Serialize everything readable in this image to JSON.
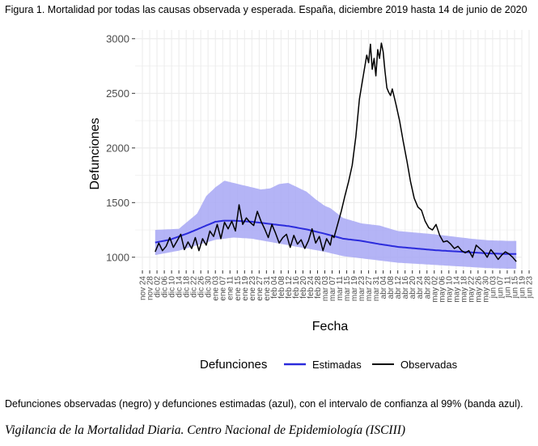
{
  "figure_title": "Figura 1. Mortalidad por todas las causas observada y esperada. España, diciembre 2019 hasta 14 de junio de 2020",
  "caption": "Defunciones observadas (negro) y defunciones estimadas (azul), con el intervalo de confianza al 99% (banda azul).",
  "source": "Vigilancia de la Mortalidad Diaria. Centro Nacional de Epidemiología (ISCIII)",
  "colors": {
    "estimated": "#2b2bdc",
    "band": "#a7a7f5",
    "observed": "#000000",
    "grid": "#ebebeb"
  },
  "chart_data": {
    "type": "line",
    "xlabel": "Fecha",
    "ylabel": "Defunciones",
    "ylim": [
      880,
      3080
    ],
    "yticks": [
      1000,
      1500,
      2000,
      2500,
      3000
    ],
    "ytick_labels": [
      "1000",
      "1500",
      "2000",
      "2500",
      "3000"
    ],
    "xrange_days": [
      -4,
      208
    ],
    "xtick_labels": [
      "nov 24",
      "nov 28",
      "dic 02",
      "dic 06",
      "dic 10",
      "dic 14",
      "dic 18",
      "dic 22",
      "dic 26",
      "dic 30",
      "ene 03",
      "ene 07",
      "ene 11",
      "ene 15",
      "ene 19",
      "ene 23",
      "ene 27",
      "ene 31",
      "feb 04",
      "feb 08",
      "feb 12",
      "feb 16",
      "feb 20",
      "feb 24",
      "feb 28",
      "mar 03",
      "mar 07",
      "mar 11",
      "mar 15",
      "mar 19",
      "mar 23",
      "mar 27",
      "mar 31",
      "abr 04",
      "abr 08",
      "abr 12",
      "abr 16",
      "abr 20",
      "abr 24",
      "abr 28",
      "may 02",
      "may 06",
      "may 10",
      "may 14",
      "may 18",
      "may 22",
      "may 26",
      "may 30",
      "jun 03",
      "jun 07",
      "jun 11",
      "jun 15",
      "jun 19",
      "jun 23"
    ],
    "xtick_days": [
      0,
      4,
      8,
      12,
      16,
      20,
      24,
      28,
      32,
      36,
      40,
      44,
      48,
      52,
      56,
      60,
      64,
      68,
      72,
      76,
      80,
      84,
      88,
      92,
      96,
      100,
      104,
      108,
      112,
      116,
      120,
      124,
      128,
      132,
      136,
      140,
      144,
      148,
      152,
      156,
      160,
      164,
      168,
      172,
      176,
      180,
      184,
      188,
      192,
      196,
      200,
      204,
      208,
      212
    ],
    "legend": {
      "title": "Defunciones",
      "items": [
        "Estimadas",
        "Observadas"
      ],
      "position": "bottom"
    },
    "series": [
      {
        "name": "Estimadas",
        "x": [
          7,
          15,
          25,
          35,
          40,
          45,
          50,
          60,
          70,
          80,
          90,
          100,
          110,
          120,
          130,
          140,
          150,
          160,
          170,
          180,
          190,
          200,
          205
        ],
        "values": [
          1135,
          1160,
          1220,
          1290,
          1325,
          1335,
          1335,
          1325,
          1305,
          1285,
          1255,
          1215,
          1170,
          1150,
          1120,
          1095,
          1080,
          1065,
          1055,
          1045,
          1035,
          1030,
          1030
        ]
      },
      {
        "name": "Banda superior 99%",
        "x": [
          7,
          20,
          30,
          35,
          40,
          45,
          50,
          55,
          60,
          65,
          70,
          75,
          80,
          85,
          90,
          95,
          100,
          103,
          110,
          120,
          130,
          140,
          150,
          160,
          170,
          180,
          190,
          200,
          205
        ],
        "values": [
          1250,
          1260,
          1400,
          1560,
          1640,
          1700,
          1680,
          1660,
          1640,
          1620,
          1630,
          1670,
          1680,
          1640,
          1600,
          1530,
          1470,
          1450,
          1360,
          1310,
          1290,
          1240,
          1225,
          1210,
          1190,
          1170,
          1155,
          1150,
          1150
        ]
      },
      {
        "name": "Banda inferior 99%",
        "x": [
          7,
          20,
          30,
          40,
          50,
          60,
          70,
          80,
          90,
          100,
          110,
          120,
          130,
          140,
          150,
          160,
          170,
          180,
          190,
          200,
          205
        ],
        "values": [
          1020,
          1060,
          1110,
          1160,
          1180,
          1170,
          1140,
          1110,
          1080,
          1050,
          1010,
          990,
          970,
          950,
          940,
          930,
          920,
          910,
          900,
          895,
          895
        ]
      },
      {
        "name": "Observadas",
        "x": [
          7,
          9,
          11,
          13,
          15,
          17,
          19,
          21,
          23,
          25,
          27,
          29,
          31,
          33,
          35,
          37,
          39,
          41,
          43,
          45,
          47,
          49,
          51,
          53,
          55,
          57,
          59,
          61,
          63,
          65,
          67,
          69,
          71,
          73,
          75,
          77,
          79,
          81,
          83,
          85,
          87,
          89,
          91,
          93,
          95,
          97,
          99,
          101,
          103,
          104,
          105,
          107,
          109,
          111,
          113,
          115,
          117,
          119,
          121,
          123,
          124,
          125,
          126,
          127,
          128,
          129,
          130,
          131,
          132,
          133,
          134,
          135,
          136,
          137,
          139,
          141,
          143,
          145,
          147,
          149,
          151,
          153,
          155,
          157,
          159,
          161,
          163,
          165,
          167,
          169,
          171,
          173,
          175,
          177,
          179,
          181,
          183,
          185,
          187,
          189,
          191,
          193,
          195,
          197,
          199,
          201,
          203,
          205
        ],
        "values": [
          1050,
          1130,
          1060,
          1100,
          1180,
          1090,
          1150,
          1210,
          1070,
          1140,
          1080,
          1180,
          1060,
          1170,
          1110,
          1240,
          1190,
          1300,
          1170,
          1320,
          1260,
          1330,
          1240,
          1480,
          1300,
          1360,
          1320,
          1290,
          1420,
          1330,
          1260,
          1180,
          1300,
          1220,
          1130,
          1180,
          1210,
          1090,
          1200,
          1120,
          1160,
          1080,
          1150,
          1260,
          1130,
          1190,
          1060,
          1170,
          1110,
          1200,
          1180,
          1300,
          1420,
          1560,
          1690,
          1840,
          2100,
          2450,
          2650,
          2850,
          2780,
          2950,
          2720,
          2820,
          2660,
          2900,
          2820,
          2960,
          2880,
          2700,
          2550,
          2510,
          2480,
          2540,
          2400,
          2250,
          2060,
          1880,
          1690,
          1540,
          1460,
          1430,
          1330,
          1270,
          1250,
          1300,
          1200,
          1140,
          1150,
          1120,
          1080,
          1100,
          1060,
          1040,
          1060,
          1000,
          1110,
          1080,
          1050,
          1000,
          1070,
          1030,
          980,
          1020,
          1050,
          1030,
          1000,
          960
        ]
      }
    ]
  }
}
